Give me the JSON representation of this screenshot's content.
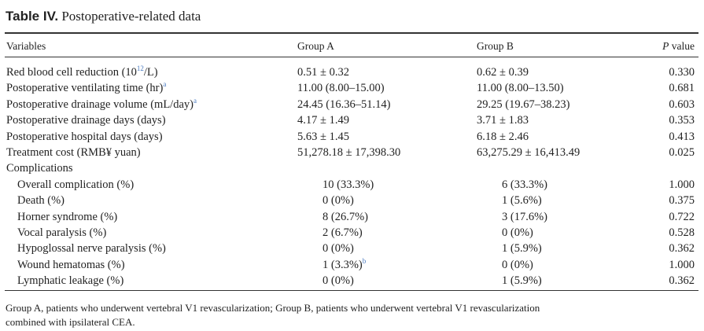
{
  "title": {
    "label": "Table IV.",
    "text": "Postoperative-related data"
  },
  "header": {
    "variables": "Variables",
    "group_a": "Group A",
    "group_b": "Group B",
    "p_italic": "P",
    "p_rest": "value"
  },
  "rows": [
    {
      "variable": "Red blood cell reduction (10",
      "variable_sup": "12",
      "variable_tail": "/L)",
      "a": "0.51 ± 0.32",
      "b": "0.62 ± 0.39",
      "p": "0.330"
    },
    {
      "variable": "Postoperative ventilating time (hr)",
      "variable_sup": "a",
      "a": "11.00 (8.00–15.00)",
      "b": "11.00 (8.00–13.50)",
      "p": "0.681"
    },
    {
      "variable": "Postoperative drainage volume (mL/day)",
      "variable_sup": "a",
      "a": "24.45 (16.36–51.14)",
      "b": "29.25 (19.67–38.23)",
      "p": "0.603"
    },
    {
      "variable": "Postoperative drainage days (days)",
      "a": "4.17 ± 1.49",
      "b": "3.71 ± 1.83",
      "p": "0.353"
    },
    {
      "variable": "Postoperative hospital days (days)",
      "a": "5.63 ± 1.45",
      "b": "6.18 ± 2.46",
      "p": "0.413"
    },
    {
      "variable": "Treatment cost (RMB¥ yuan)",
      "a": "51,278.18 ± 17,398.30",
      "b": "63,275.29 ± 16,413.49",
      "p": "0.025"
    }
  ],
  "complications": {
    "label": "Complications",
    "rows": [
      {
        "variable": "Overall complication (%)",
        "a": "10 (33.3%)",
        "b": "6 (33.3%)",
        "p": "1.000"
      },
      {
        "variable": "Death (%)",
        "a": "0 (0%)",
        "b": "1 (5.6%)",
        "p": "0.375"
      },
      {
        "variable": "Horner syndrome (%)",
        "a": "8 (26.7%)",
        "b": "3 (17.6%)",
        "p": "0.722"
      },
      {
        "variable": "Vocal paralysis (%)",
        "a": "2 (6.7%)",
        "b": "0 (0%)",
        "p": "0.528"
      },
      {
        "variable": "Hypoglossal nerve paralysis (%)",
        "a": "0 (0%)",
        "b": "1 (5.9%)",
        "p": "0.362"
      },
      {
        "variable": "Wound hematomas (%)",
        "a": "1 (3.3%)",
        "a_sup": "b",
        "b": "0 (0%)",
        "p": "1.000"
      },
      {
        "variable": "Lymphatic leakage (%)",
        "a": "0 (0%)",
        "b": "1 (5.9%)",
        "p": "0.362"
      }
    ]
  },
  "footnote": {
    "line1": "Group A, patients who underwent vertebral V1 revascularization; Group B, patients who underwent vertebral V1 revascularization",
    "line2": "combined with ipsilateral CEA."
  }
}
